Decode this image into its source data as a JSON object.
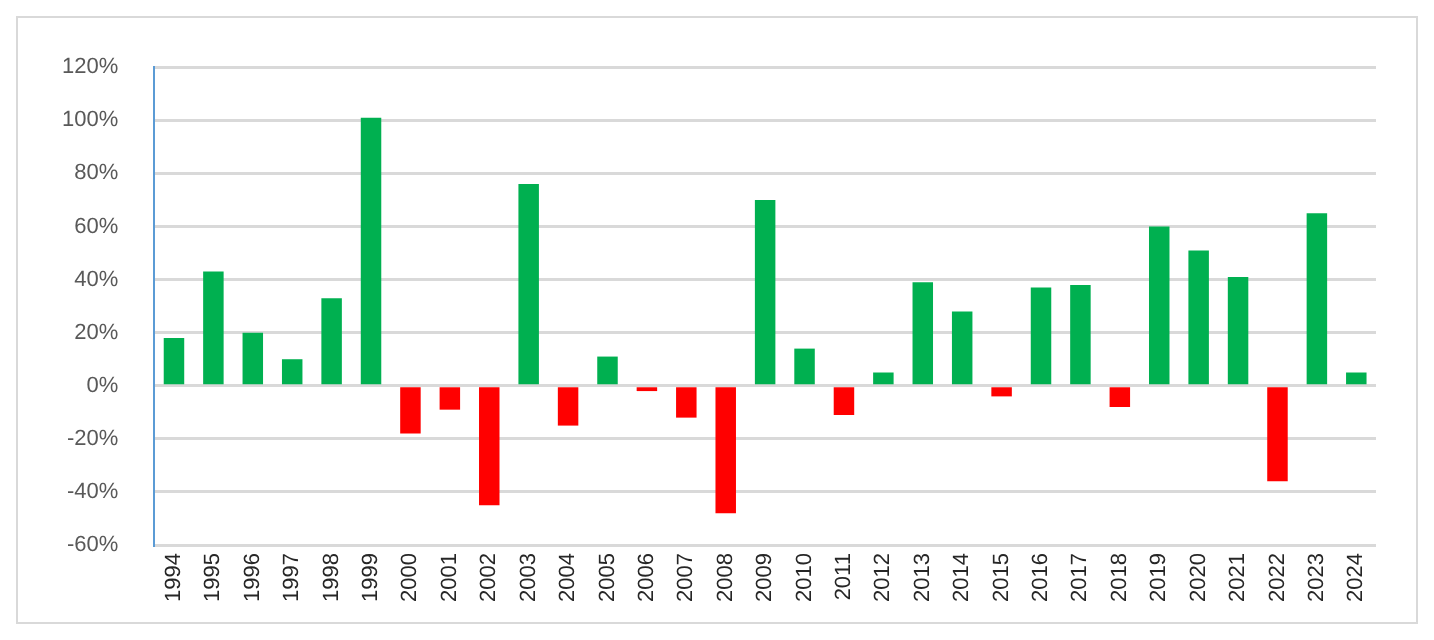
{
  "chart_data": {
    "type": "bar",
    "categories": [
      "1994",
      "1995",
      "1996",
      "1997",
      "1998",
      "1999",
      "2000",
      "2001",
      "2002",
      "2003",
      "2004",
      "2005",
      "2006",
      "2007",
      "2008",
      "2009",
      "2010",
      "2011",
      "2012",
      "2013",
      "2014",
      "2015",
      "2016",
      "2017",
      "2018",
      "2019",
      "2020",
      "2021",
      "2022",
      "2023",
      "2024"
    ],
    "values": [
      18,
      43,
      20,
      10,
      33,
      101,
      -18,
      -9,
      -45,
      76,
      -15,
      11,
      -2,
      -12,
      -48,
      70,
      14,
      -11,
      5,
      39,
      28,
      -4,
      37,
      38,
      -8,
      60,
      51,
      41,
      -36,
      65,
      5
    ],
    "colors": [
      "#00b050",
      "#00b050",
      "#00b050",
      "#00b050",
      "#00b050",
      "#00b050",
      "#ff0000",
      "#ff0000",
      "#ff0000",
      "#00b050",
      "#ff0000",
      "#00b050",
      "#ff0000",
      "#ff0000",
      "#ff0000",
      "#00b050",
      "#00b050",
      "#ff0000",
      "#00b050",
      "#00b050",
      "#00b050",
      "#ff0000",
      "#00b050",
      "#00b050",
      "#ff0000",
      "#00b050",
      "#00b050",
      "#00b050",
      "#ff0000",
      "#00b050",
      "#00b050"
    ],
    "ylim": [
      -60,
      120
    ],
    "yticks": [
      {
        "value": -60,
        "label": "-60%"
      },
      {
        "value": -40,
        "label": "-40%"
      },
      {
        "value": -20,
        "label": "-20%"
      },
      {
        "value": 0,
        "label": "0%"
      },
      {
        "value": 20,
        "label": "20%"
      },
      {
        "value": 40,
        "label": "40%"
      },
      {
        "value": 60,
        "label": "60%"
      },
      {
        "value": 80,
        "label": "80%"
      },
      {
        "value": 100,
        "label": "100%"
      },
      {
        "value": 120,
        "label": "120%"
      }
    ],
    "grid": "y",
    "legend": false
  }
}
